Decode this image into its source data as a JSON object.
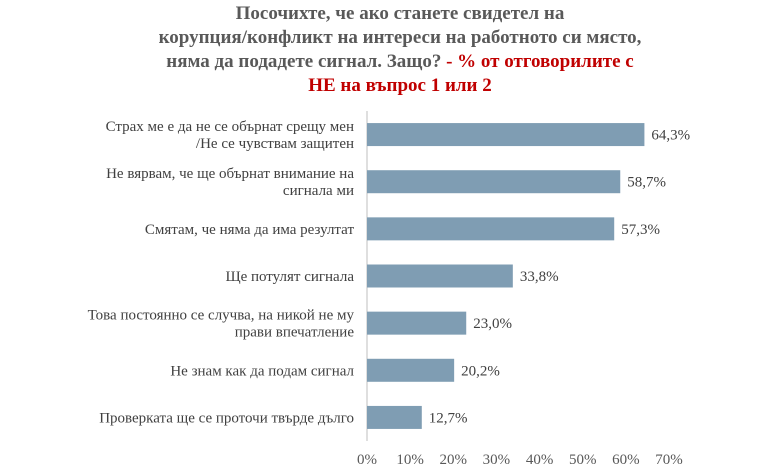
{
  "title": {
    "line1": "Посочихте, че ако станете свидетел на",
    "line2": "корупция/конфликт на интереси на работното си място,",
    "line3_main": "няма да подадете сигнал. Защо? ",
    "line3_highlight": "- % от отговорилите с",
    "line4_highlight": "НЕ на въпрос 1 или 2"
  },
  "colors": {
    "bar": "#7f9db3",
    "highlight": "#c00000",
    "axis": "#bfbfbf"
  },
  "chart_data": {
    "type": "bar",
    "orientation": "horizontal",
    "categories": [
      [
        "Страх ме е да не се обърнат срещу мен",
        "/Не се чувствам защитен"
      ],
      [
        "Не вярвам, че ще обърнат внимание на",
        "сигнала ми"
      ],
      [
        "Смятам, че няма да има резултат"
      ],
      [
        "Ще потулят сигнала"
      ],
      [
        "Това постоянно се случва, на никой не му",
        "прави впечатление"
      ],
      [
        "Не знам как да подам сигнал"
      ],
      [
        "Проверката ще се проточи твърде дълго"
      ]
    ],
    "values": [
      64.3,
      58.7,
      57.3,
      33.8,
      23.0,
      20.2,
      12.7
    ],
    "value_labels": [
      "64,3%",
      "58,7%",
      "57,3%",
      "33,8%",
      "23,0%",
      "20,2%",
      "12,7%"
    ],
    "xlim": [
      0,
      70
    ],
    "ticks": [
      0,
      10,
      20,
      30,
      40,
      50,
      60,
      70
    ],
    "tick_labels": [
      "0%",
      "10%",
      "20%",
      "30%",
      "40%",
      "50%",
      "60%",
      "70%"
    ],
    "grid": false,
    "legend": "none"
  }
}
